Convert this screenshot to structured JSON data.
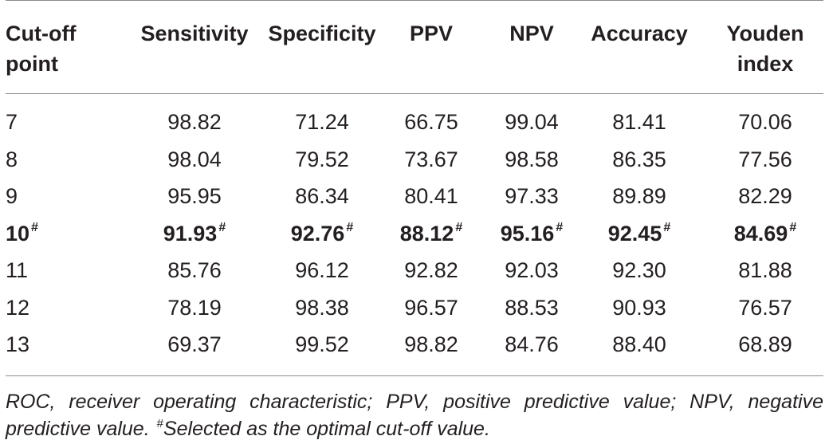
{
  "table": {
    "headers": [
      {
        "line1": "Cut-off",
        "line2": "point"
      },
      {
        "line1": "Sensitivity",
        "line2": ""
      },
      {
        "line1": "Specificity",
        "line2": ""
      },
      {
        "line1": "PPV",
        "line2": ""
      },
      {
        "line1": "NPV",
        "line2": ""
      },
      {
        "line1": "Accuracy",
        "line2": ""
      },
      {
        "line1": "Youden",
        "line2": "index"
      }
    ],
    "rows": [
      {
        "cells": [
          "7",
          "98.82",
          "71.24",
          "66.75",
          "99.04",
          "81.41",
          "70.06"
        ],
        "highlight": false,
        "mark": ""
      },
      {
        "cells": [
          "8",
          "98.04",
          "79.52",
          "73.67",
          "98.58",
          "86.35",
          "77.56"
        ],
        "highlight": false,
        "mark": ""
      },
      {
        "cells": [
          "9",
          "95.95",
          "86.34",
          "80.41",
          "97.33",
          "89.89",
          "82.29"
        ],
        "highlight": false,
        "mark": ""
      },
      {
        "cells": [
          "10",
          "91.93",
          "92.76",
          "88.12",
          "95.16",
          "92.45",
          "84.69"
        ],
        "highlight": true,
        "mark": "#"
      },
      {
        "cells": [
          "11",
          "85.76",
          "96.12",
          "92.82",
          "92.03",
          "92.30",
          "81.88"
        ],
        "highlight": false,
        "mark": ""
      },
      {
        "cells": [
          "12",
          "78.19",
          "98.38",
          "96.57",
          "88.53",
          "90.93",
          "76.57"
        ],
        "highlight": false,
        "mark": ""
      },
      {
        "cells": [
          "13",
          "69.37",
          "99.52",
          "98.82",
          "84.76",
          "88.40",
          "68.89"
        ],
        "highlight": false,
        "mark": ""
      }
    ]
  },
  "footnote": {
    "text": "ROC, receiver operating characteristic; PPV, positive predictive value; NPV, negative predictive value.",
    "mark": "#",
    "mark_text": "Selected as the optimal cut-off value."
  }
}
